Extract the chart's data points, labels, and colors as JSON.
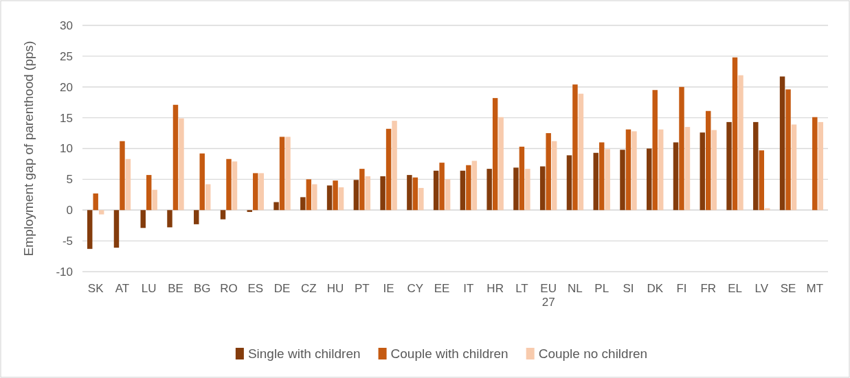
{
  "chart_data": {
    "type": "bar",
    "ylabel": "Employment gap of parenthood (pps)",
    "categories": [
      "SK",
      "AT",
      "LU",
      "BE",
      "BG",
      "RO",
      "ES",
      "DE",
      "CZ",
      "HU",
      "PT",
      "IE",
      "CY",
      "EE",
      "IT",
      "HR",
      "LT",
      "EU 27",
      "NL",
      "PL",
      "SI",
      "DK",
      "FI",
      "FR",
      "EL",
      "LV",
      "SE",
      "MT"
    ],
    "series": [
      {
        "name": "Single with children",
        "color": "#843c0c",
        "values": [
          -6.3,
          -6.1,
          -2.9,
          -2.8,
          -2.3,
          -1.5,
          -0.3,
          1.3,
          2.1,
          4.0,
          4.9,
          5.5,
          5.7,
          6.4,
          6.4,
          6.7,
          6.9,
          7.1,
          8.9,
          9.3,
          9.8,
          10.0,
          11.0,
          12.6,
          14.3,
          14.3,
          21.7,
          null
        ]
      },
      {
        "name": "Couple with children",
        "color": "#c55a11",
        "values": [
          2.7,
          11.2,
          5.7,
          17.1,
          9.2,
          8.3,
          6.0,
          11.9,
          5.0,
          4.8,
          6.7,
          13.2,
          5.3,
          7.7,
          7.3,
          18.2,
          10.3,
          12.5,
          20.4,
          11.0,
          13.1,
          19.5,
          20.0,
          16.1,
          24.8,
          9.7,
          19.6,
          15.1
        ]
      },
      {
        "name": "Couple no children",
        "color": "#f8cbad",
        "values": [
          -0.7,
          8.3,
          3.3,
          14.9,
          4.2,
          7.9,
          6.0,
          11.9,
          4.2,
          3.7,
          5.5,
          14.5,
          3.6,
          5.0,
          8.0,
          15.1,
          6.7,
          11.2,
          18.9,
          9.9,
          12.8,
          13.1,
          13.5,
          13.0,
          21.9,
          0.3,
          13.9,
          14.3
        ]
      }
    ],
    "ylim": [
      -10,
      30
    ],
    "yticks": [
      -10,
      -5,
      0,
      5,
      10,
      15,
      20,
      25,
      30
    ],
    "grid": "y",
    "legend": "bottom"
  }
}
